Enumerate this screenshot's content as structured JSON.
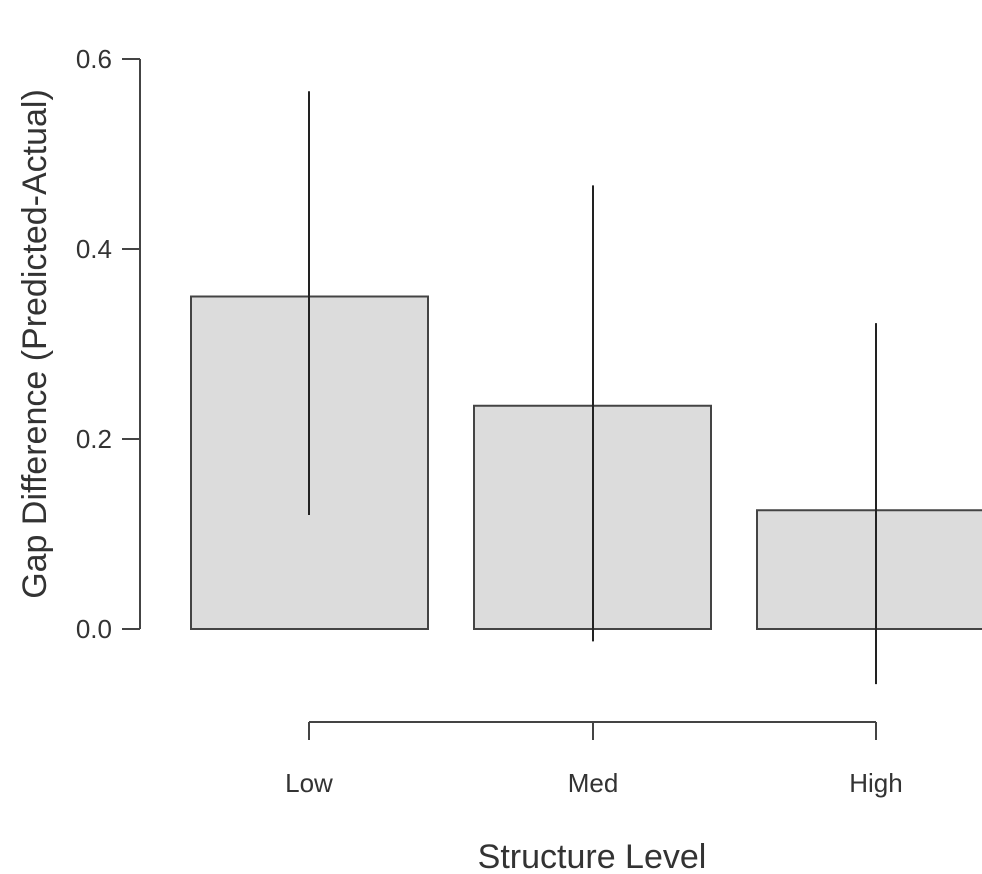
{
  "chart_data": {
    "type": "bar",
    "title": "",
    "xlabel": "Structure Level",
    "ylabel": "Gap Difference (Predicted-Actual)",
    "categories": [
      "Low",
      "Med",
      "High"
    ],
    "values": [
      0.35,
      0.235,
      0.125
    ],
    "error_bars": {
      "lower": [
        0.12,
        -0.013,
        -0.058
      ],
      "upper": [
        0.566,
        0.467,
        0.322
      ]
    },
    "y_ticks": [
      "0.0",
      "0.2",
      "0.4",
      "0.6"
    ],
    "y_tick_values": [
      0.0,
      0.2,
      0.4,
      0.6
    ],
    "ylim": [
      -0.07,
      0.62
    ],
    "grid": false,
    "legend": "none",
    "colors": {
      "bar_fill": "#dcdcdc",
      "bar_stroke": "#444444",
      "axis": "#444444",
      "text": "#333333"
    }
  }
}
